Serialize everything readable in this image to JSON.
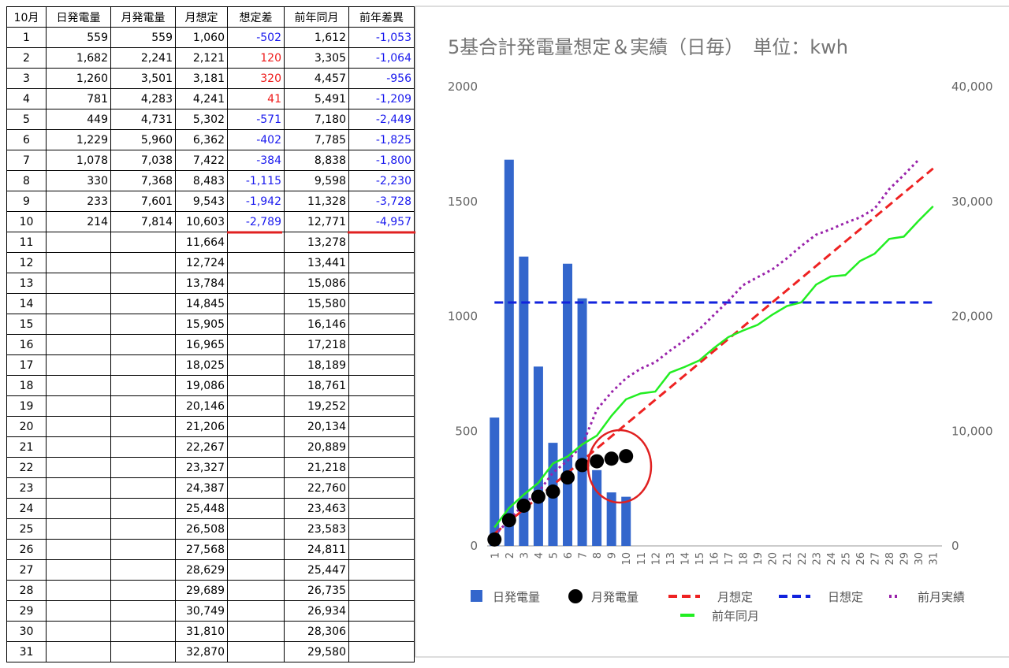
{
  "table": {
    "header": [
      "10月",
      "日発電量",
      "月発電量",
      "月想定",
      "想定差",
      "前年同月",
      "前年差異"
    ],
    "rows": [
      [
        "1",
        "559",
        "559",
        "1,060",
        "-502",
        "1,612",
        "-1,053"
      ],
      [
        "2",
        "1,682",
        "2,241",
        "2,121",
        "120",
        "3,305",
        "-1,064"
      ],
      [
        "3",
        "1,260",
        "3,501",
        "3,181",
        "320",
        "4,457",
        "-956"
      ],
      [
        "4",
        "781",
        "4,283",
        "4,241",
        "41",
        "5,491",
        "-1,209"
      ],
      [
        "5",
        "449",
        "4,731",
        "5,302",
        "-571",
        "7,180",
        "-2,449"
      ],
      [
        "6",
        "1,229",
        "5,960",
        "6,362",
        "-402",
        "7,785",
        "-1,825"
      ],
      [
        "7",
        "1,078",
        "7,038",
        "7,422",
        "-384",
        "8,838",
        "-1,800"
      ],
      [
        "8",
        "330",
        "7,368",
        "8,483",
        "-1,115",
        "9,598",
        "-2,230"
      ],
      [
        "9",
        "233",
        "7,601",
        "9,543",
        "-1,942",
        "11,328",
        "-3,728"
      ],
      [
        "10",
        "214",
        "7,814",
        "10,603",
        "-2,789",
        "12,771",
        "-4,957"
      ],
      [
        "11",
        null,
        null,
        "11,664",
        null,
        "13,278",
        null
      ],
      [
        "12",
        null,
        null,
        "12,724",
        null,
        "13,441",
        null
      ],
      [
        "13",
        null,
        null,
        "13,784",
        null,
        "15,086",
        null
      ],
      [
        "14",
        null,
        null,
        "14,845",
        null,
        "15,580",
        null
      ],
      [
        "15",
        null,
        null,
        "15,905",
        null,
        "16,146",
        null
      ],
      [
        "16",
        null,
        null,
        "16,965",
        null,
        "17,218",
        null
      ],
      [
        "17",
        null,
        null,
        "18,025",
        null,
        "18,189",
        null
      ],
      [
        "18",
        null,
        null,
        "19,086",
        null,
        "18,761",
        null
      ],
      [
        "19",
        null,
        null,
        "20,146",
        null,
        "19,252",
        null
      ],
      [
        "20",
        null,
        null,
        "21,206",
        null,
        "20,134",
        null
      ],
      [
        "21",
        null,
        null,
        "22,267",
        null,
        "20,889",
        null
      ],
      [
        "22",
        null,
        null,
        "23,327",
        null,
        "21,218",
        null
      ],
      [
        "23",
        null,
        null,
        "24,387",
        null,
        "22,760",
        null
      ],
      [
        "24",
        null,
        null,
        "25,448",
        null,
        "23,463",
        null
      ],
      [
        "25",
        null,
        null,
        "26,508",
        null,
        "23,583",
        null
      ],
      [
        "26",
        null,
        null,
        "27,568",
        null,
        "24,811",
        null
      ],
      [
        "27",
        null,
        null,
        "28,629",
        null,
        "25,447",
        null
      ],
      [
        "28",
        null,
        null,
        "29,689",
        null,
        "26,735",
        null
      ],
      [
        "29",
        null,
        null,
        "30,749",
        null,
        "26,934",
        null
      ],
      [
        "30",
        null,
        null,
        "31,810",
        null,
        "28,306",
        null
      ],
      [
        "31",
        null,
        null,
        "32,870",
        null,
        "29,580",
        null
      ]
    ]
  },
  "chart_data": {
    "type": "combo",
    "title": "5基合計発電量想定＆実績（日毎）　単位：kwh",
    "categories": [
      "1",
      "2",
      "3",
      "4",
      "5",
      "6",
      "7",
      "8",
      "9",
      "10",
      "11",
      "12",
      "13",
      "14",
      "15",
      "16",
      "17",
      "18",
      "19",
      "20",
      "21",
      "22",
      "23",
      "24",
      "25",
      "26",
      "27",
      "28",
      "29",
      "30",
      "31"
    ],
    "ylim": [
      0,
      2000
    ],
    "yticks": [
      0,
      500,
      1000,
      1500,
      2000
    ],
    "y2lim": [
      0,
      40000
    ],
    "y2ticks": [
      0,
      {
        "value": 10000,
        "label": "10,000"
      },
      {
        "value": 20000,
        "label": "20,000"
      },
      {
        "value": 30000,
        "label": "30,000"
      },
      {
        "value": 40000,
        "label": "40,000"
      }
    ],
    "grid": false,
    "legend": "bottom",
    "series": [
      {
        "name": "日発電量",
        "type": "bar",
        "color": "#3366cc",
        "values": [
          559,
          1682,
          1260,
          781,
          449,
          1229,
          1078,
          330,
          233,
          214,
          null,
          null,
          null,
          null,
          null,
          null,
          null,
          null,
          null,
          null,
          null,
          null,
          null,
          null,
          null,
          null,
          null,
          null,
          null,
          null,
          null
        ]
      },
      {
        "name": "月発電量",
        "type": "scatter",
        "axis": "y2",
        "color": "#000000",
        "values": [
          559,
          2241,
          3501,
          4283,
          4731,
          5960,
          7038,
          7368,
          7601,
          7814,
          null,
          null,
          null,
          null,
          null,
          null,
          null,
          null,
          null,
          null,
          null,
          null,
          null,
          null,
          null,
          null,
          null,
          null,
          null,
          null,
          null
        ]
      },
      {
        "name": "月想定",
        "type": "line",
        "dash": "dashed",
        "axis": "y2",
        "color": "#ee2222",
        "values": [
          1060,
          2121,
          3181,
          4241,
          5302,
          6362,
          7422,
          8483,
          9543,
          10603,
          11664,
          12724,
          13784,
          14845,
          15905,
          16965,
          18025,
          19086,
          20146,
          21206,
          22267,
          23327,
          24387,
          25448,
          26508,
          27568,
          28629,
          29689,
          30749,
          31810,
          32870
        ]
      },
      {
        "name": "日想定",
        "type": "line",
        "dash": "dashed",
        "color": "#1122dd",
        "values": [
          1060,
          1060,
          1060,
          1060,
          1060,
          1060,
          1060,
          1060,
          1060,
          1060,
          1060,
          1060,
          1060,
          1060,
          1060,
          1060,
          1060,
          1060,
          1060,
          1060,
          1060,
          1060,
          1060,
          1060,
          1060,
          1060,
          1060,
          1060,
          1060,
          1060,
          1060
        ]
      },
      {
        "name": "前月実績",
        "type": "line",
        "dash": "dotted",
        "axis": "y2",
        "color": "#9922aa",
        "values": [
          900,
          2260,
          3640,
          4670,
          6380,
          7410,
          8780,
          11870,
          13380,
          14600,
          15440,
          16000,
          17000,
          17900,
          18870,
          20100,
          21340,
          22710,
          23400,
          24080,
          25040,
          26140,
          27100,
          27580,
          28130,
          28610,
          29370,
          31080,
          32310,
          33620,
          null
        ]
      },
      {
        "name": "前年同月",
        "type": "line",
        "axis": "y2",
        "color": "#22ee22",
        "values": [
          1612,
          3305,
          4457,
          5491,
          7180,
          7785,
          8838,
          9598,
          11328,
          12771,
          13278,
          13441,
          15086,
          15580,
          16146,
          17218,
          18189,
          18761,
          19252,
          20134,
          20889,
          21218,
          22760,
          23463,
          23583,
          24811,
          25447,
          26735,
          26934,
          28306,
          29580
        ]
      }
    ]
  }
}
